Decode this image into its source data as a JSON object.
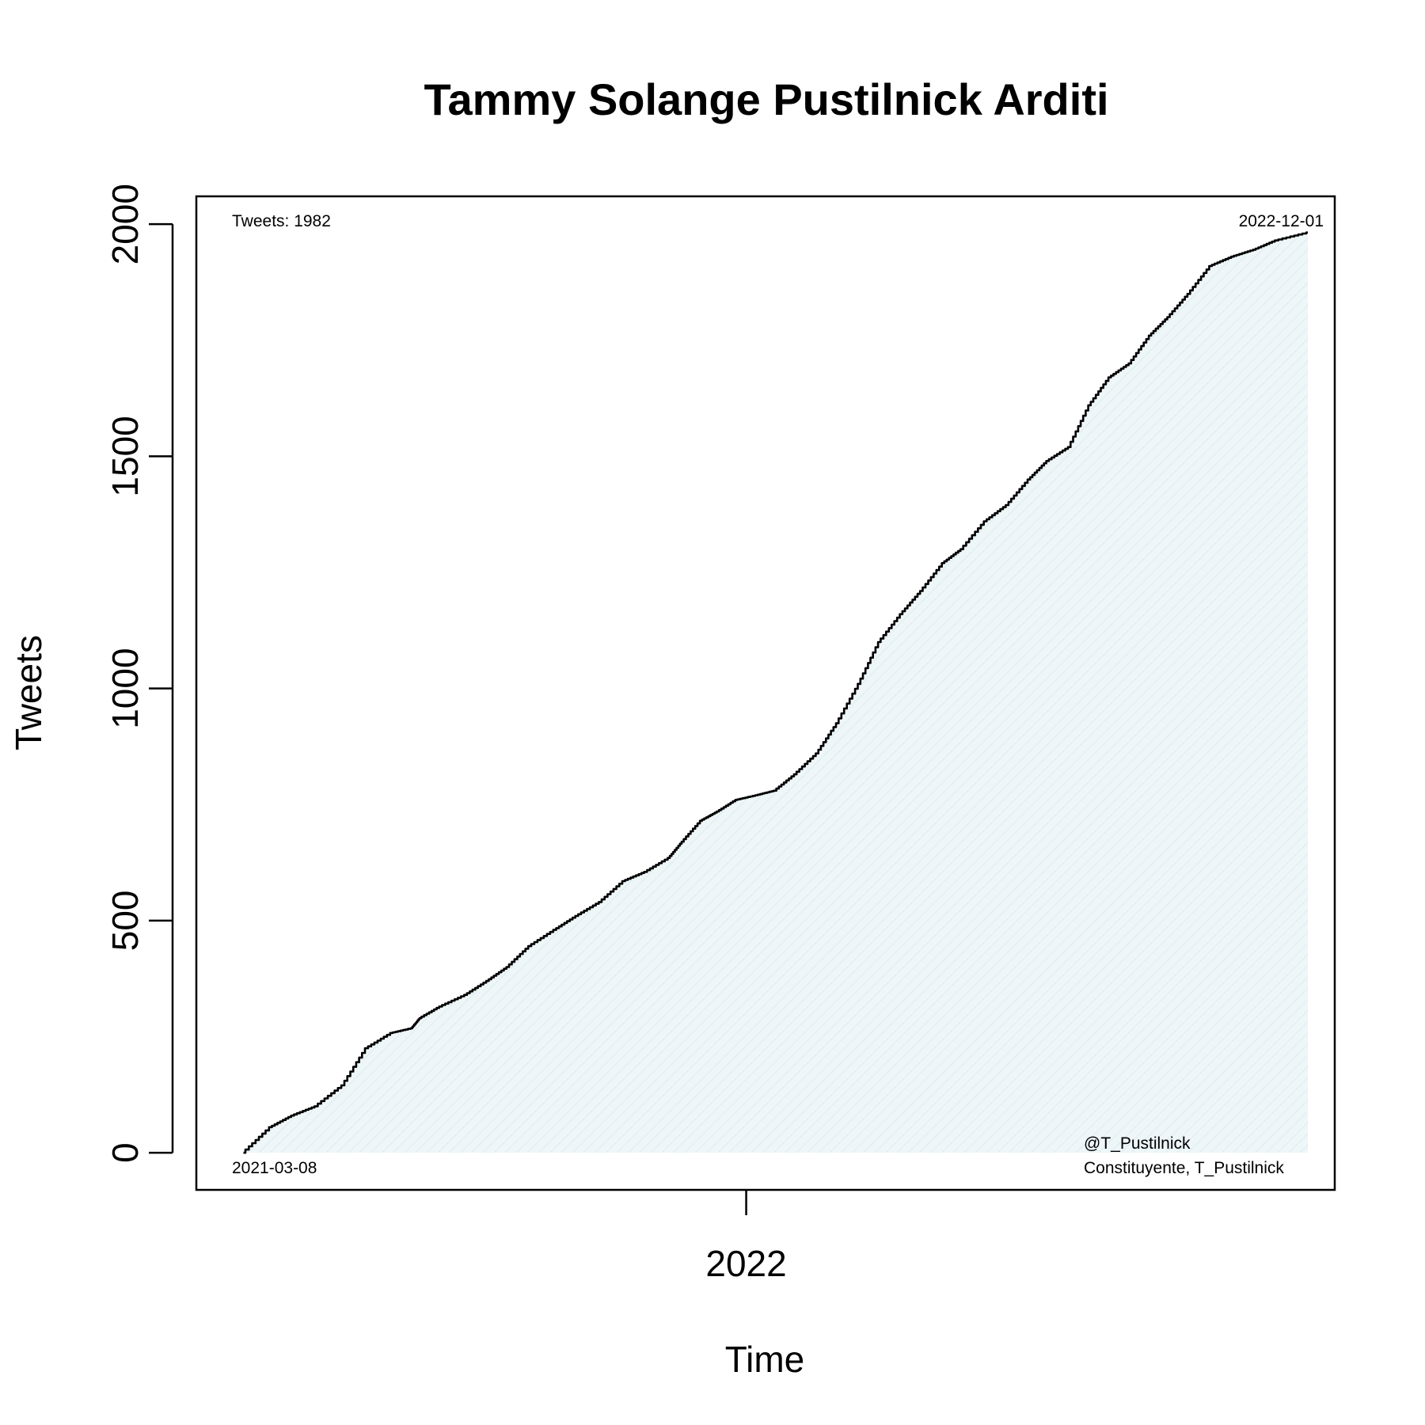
{
  "chart_data": {
    "type": "area",
    "title": "Tammy Solange Pustilnick Arditi",
    "xlabel": "Time",
    "ylabel": "Tweets",
    "ylim": [
      -80,
      2060
    ],
    "xlim": [
      "2021-02-08",
      "2022-12-17"
    ],
    "y_ticks": [
      0,
      500,
      1000,
      1500,
      2000
    ],
    "x_ticks": [
      {
        "date": "2022-01-01",
        "label": "2022"
      }
    ],
    "fill_color": "#eef6f8",
    "line_color": "#000000",
    "annotations": {
      "top_left": "Tweets: 1982",
      "top_right": "2022-12-01",
      "bottom_left": "2021-03-08",
      "bottom_right": [
        "@T_Pustilnick",
        "Constituyente, T_Pustilnick"
      ]
    },
    "series": [
      {
        "x": [
          "2021-03-08",
          "2021-03-24",
          "2021-04-06",
          "2021-04-20",
          "2021-05-06",
          "2021-05-20",
          "2021-06-04",
          "2021-06-16",
          "2021-06-21",
          "2021-07-03",
          "2021-07-18",
          "2021-07-31",
          "2021-08-12",
          "2021-08-25",
          "2021-09-09",
          "2021-09-22",
          "2021-10-06",
          "2021-10-20",
          "2021-11-02",
          "2021-11-16",
          "2021-11-24",
          "2021-12-05",
          "2021-12-15",
          "2021-12-26",
          "2022-01-07",
          "2022-01-18",
          "2022-01-30",
          "2022-02-12",
          "2022-02-24",
          "2022-03-09",
          "2022-03-21",
          "2022-04-03",
          "2022-04-15",
          "2022-04-28",
          "2022-05-09",
          "2022-05-23",
          "2022-06-05",
          "2022-06-18",
          "2022-06-29",
          "2022-07-12",
          "2022-07-24",
          "2022-08-05",
          "2022-08-17",
          "2022-08-29",
          "2022-09-09",
          "2022-09-21",
          "2022-10-04",
          "2022-10-17",
          "2022-10-30",
          "2022-11-12",
          "2022-12-01"
        ],
        "y": [
          0,
          55,
          80,
          100,
          145,
          225,
          258,
          268,
          290,
          315,
          340,
          370,
          400,
          445,
          480,
          510,
          540,
          585,
          605,
          635,
          670,
          715,
          735,
          760,
          770,
          780,
          815,
          860,
          925,
          1010,
          1100,
          1160,
          1210,
          1270,
          1300,
          1360,
          1395,
          1450,
          1490,
          1520,
          1610,
          1670,
          1700,
          1760,
          1800,
          1850,
          1910,
          1930,
          1945,
          1965,
          1982
        ]
      }
    ]
  }
}
